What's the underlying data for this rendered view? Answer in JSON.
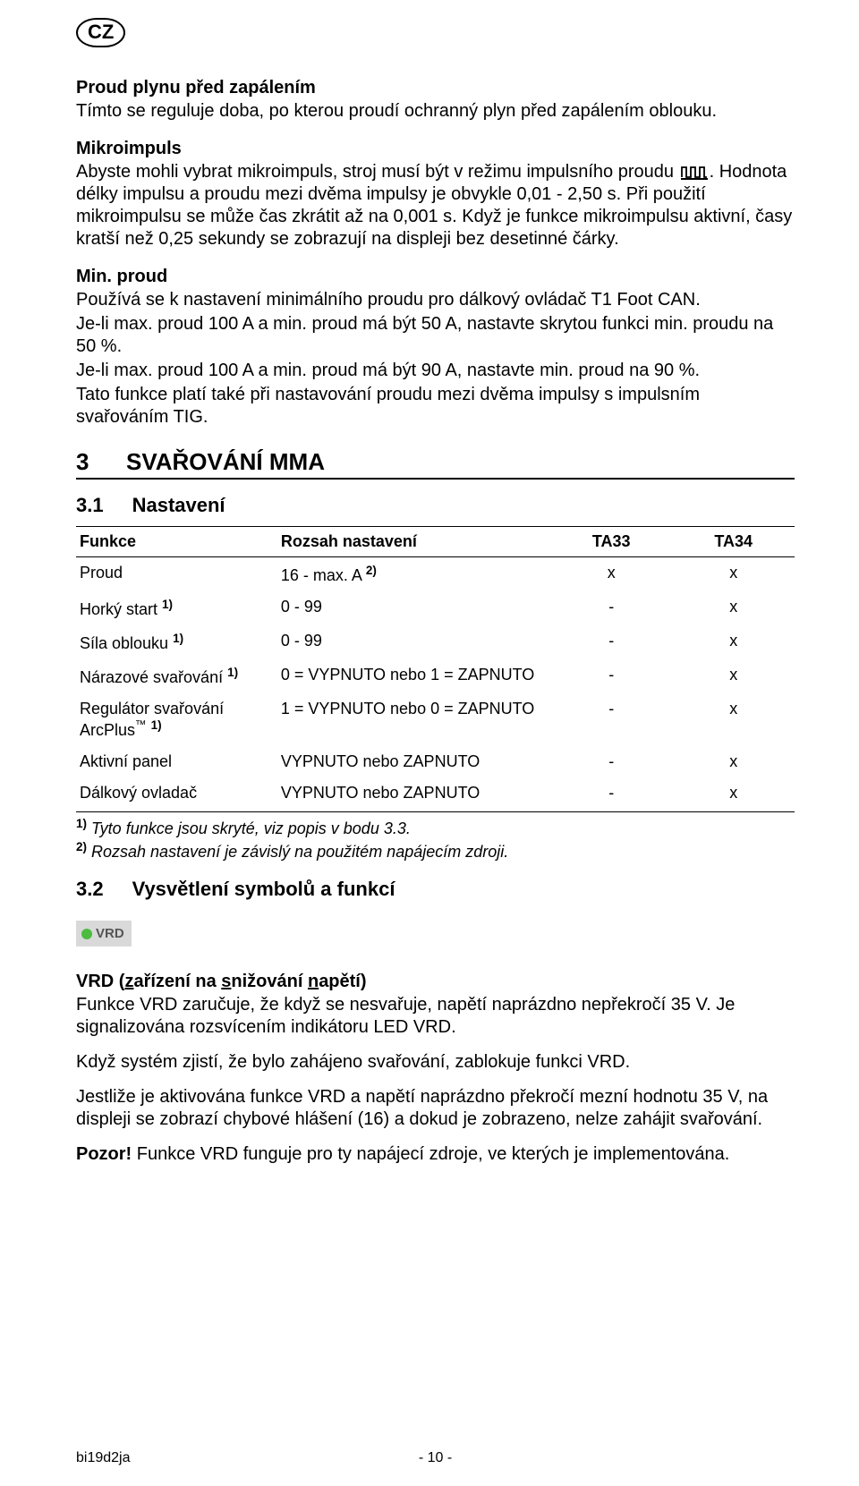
{
  "badge": "CZ",
  "s1": {
    "h": "Proud plynu před zapálením",
    "p": "Tímto se reguluje doba, po kterou proudí ochranný plyn před zapálením oblouku."
  },
  "s2": {
    "h": "Mikroimpuls",
    "p1a": "Abyste mohli vybrat mikroimpuls, stroj musí být v režimu impulsního proudu ",
    "p1b": ". Hodnota délky impulsu a proudu mezi dvěma impulsy je obvykle 0,01 - 2,50 s. Při použití mikroimpulsu se může čas zkrátit až na 0,001 s. Když je funkce mikroimpulsu aktivní, časy kratší než 0,25 sekundy se zobrazují na displeji bez desetinné čárky."
  },
  "s3": {
    "h": "Min. proud",
    "p1": "Používá se k nastavení minimálního proudu pro dálkový ovládač T1 Foot CAN.",
    "p2": "Je-li max. proud 100 A a min. proud má být 50 A, nastavte skrytou funkci min. proudu na 50 %.",
    "p3": "Je-li max. proud 100 A a min. proud má být 90 A, nastavte min. proud na 90 %.",
    "p4": "Tato funkce platí také při nastavování proudu mezi dvěma impulsy s impulsním svařováním TIG."
  },
  "h2": {
    "num": "3",
    "title": "SVAŘOVÁNÍ MMA"
  },
  "h31": {
    "num": "3.1",
    "title": "Nastavení"
  },
  "table": {
    "headers": [
      "Funkce",
      "Rozsah nastavení",
      "TA33",
      "TA34"
    ],
    "rows": [
      {
        "c1": "Proud",
        "sup1": "",
        "c2": "16 - max. A ",
        "sup2": "2)",
        "c3": "x",
        "c4": "x"
      },
      {
        "c1": "Horký start ",
        "sup1": "1)",
        "c2": "0 - 99",
        "sup2": "",
        "c3": "-",
        "c4": "x"
      },
      {
        "c1": "Síla oblouku ",
        "sup1": "1)",
        "c2": "0 - 99",
        "sup2": "",
        "c3": "-",
        "c4": "x"
      },
      {
        "c1": "Nárazové svařování ",
        "sup1": "1)",
        "c2": "0 = VYPNUTO nebo 1 = ZAPNUTO",
        "sup2": "",
        "c3": "-",
        "c4": "x"
      },
      {
        "c1": "Regulátor svařování ArcPlus™ ",
        "sup1": "1)",
        "c2": "1 = VYPNUTO nebo 0 = ZAPNUTO",
        "sup2": "",
        "c3": "-",
        "c4": "x"
      },
      {
        "c1": "Aktivní panel",
        "sup1": "",
        "c2": "VYPNUTO nebo ZAPNUTO",
        "sup2": "",
        "c3": "-",
        "c4": "x"
      },
      {
        "c1": "Dálkový ovladač",
        "sup1": "",
        "c2": "VYPNUTO nebo ZAPNUTO",
        "sup2": "",
        "c3": "-",
        "c4": "x"
      }
    ]
  },
  "fn1": {
    "sup": "1)",
    "txt": " Tyto funkce jsou skryté, viz popis v bodu 3.3."
  },
  "fn2": {
    "sup": "2)",
    "txt": " Rozsah nastavení je závislý na použitém napájecím zdroji."
  },
  "h32": {
    "num": "3.2",
    "title": "Vysvětlení symbolů a funkcí"
  },
  "vrdBadge": "VRD",
  "vrd": {
    "h_pre": "VRD  (",
    "u1": "z",
    "t1": "ařízení na ",
    "u2": "s",
    "t2": "nižování ",
    "u3": "n",
    "t3": "apětí)",
    "p1": "Funkce VRD zaručuje, že když se nesvařuje, napětí naprázdno nepřekročí 35 V. Je signalizována rozsvícením indikátoru LED VRD.",
    "p2": "Když systém zjistí, že bylo zahájeno svařování, zablokuje funkci VRD.",
    "p3": "Jestliže je aktivována funkce VRD a napětí naprázdno překročí mezní hodnotu 35 V, na displeji se zobrazí chybové hlášení (16) a dokud je zobrazeno, nelze zahájit svařování.",
    "p4b": "Pozor!",
    "p4": " Funkce VRD funguje pro ty napájecí zdroje, ve kterých je implementována."
  },
  "footer": {
    "left": "bi19d2ja",
    "center": "- 10 -"
  }
}
